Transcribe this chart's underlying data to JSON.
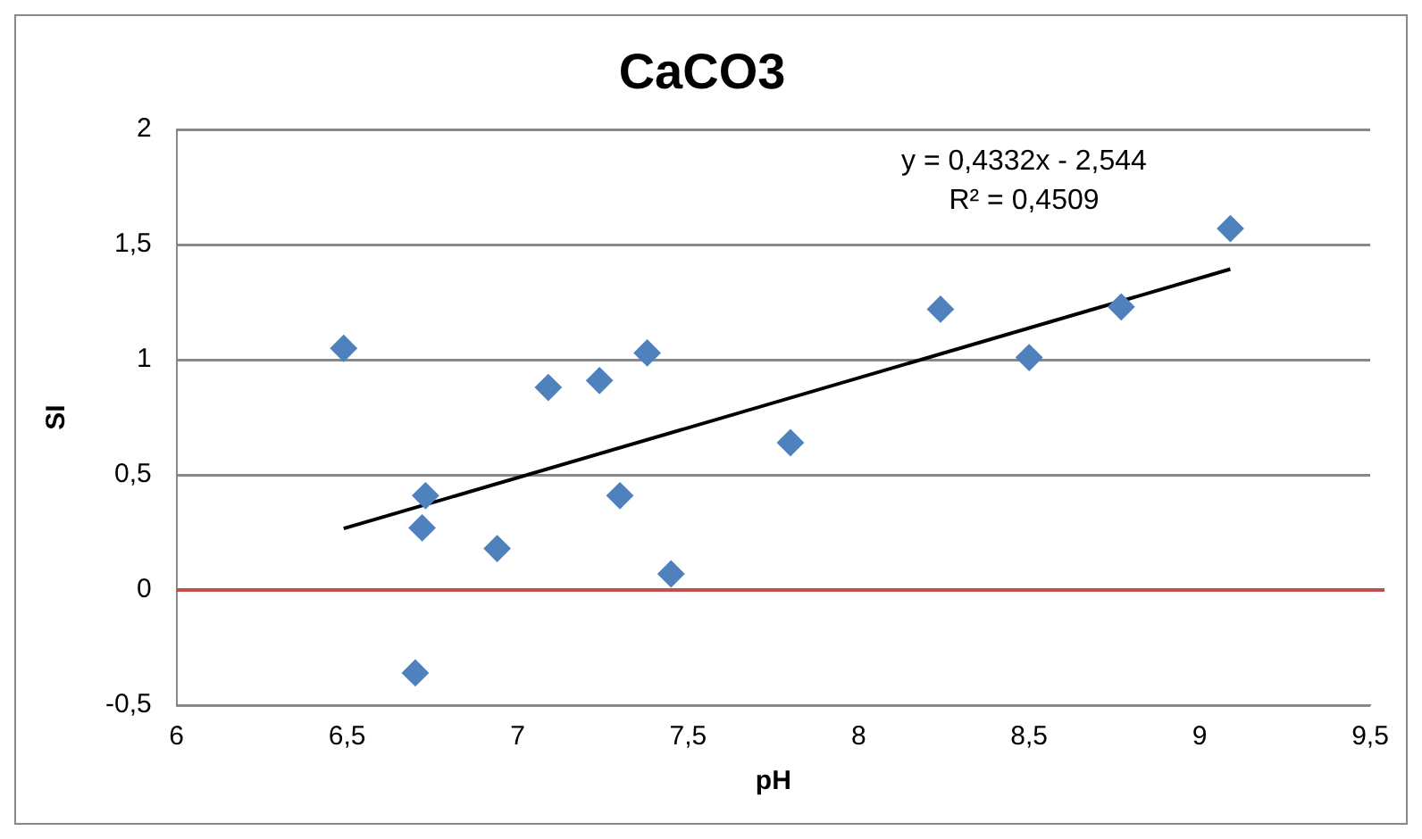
{
  "chart_data": {
    "type": "scatter",
    "title": "CaCO3",
    "xlabel": "pH",
    "ylabel": "SI",
    "annotations": [
      "y = 0,4332x - 2,544",
      "R² = 0,4509"
    ],
    "series": [
      {
        "type": "scatter",
        "color": "#4f81bd",
        "marker": "diamond",
        "x": [
          6.49,
          6.73,
          6.72,
          6.94,
          6.7,
          7.09,
          7.24,
          7.3,
          7.38,
          7.45,
          7.8,
          8.24,
          8.5,
          8.77,
          9.09
        ],
        "values": [
          1.05,
          0.41,
          0.27,
          0.18,
          -0.36,
          0.88,
          0.91,
          0.41,
          1.03,
          0.07,
          0.64,
          1.22,
          1.01,
          1.23,
          1.57
        ]
      },
      {
        "type": "line",
        "color": "#000000",
        "marker": "none",
        "x": [
          6.49,
          9.09
        ],
        "values": [
          0.267,
          1.394
        ]
      }
    ],
    "ref_lines": [
      {
        "axis": "y",
        "value": 0,
        "color": "#c0504d"
      }
    ],
    "xlim": [
      6,
      9.5
    ],
    "xticks": [
      6,
      {
        "value": 6.5,
        "label": "6,5"
      },
      7,
      {
        "value": 7.5,
        "label": "7,5"
      },
      8,
      {
        "value": 8.5,
        "label": "8,5"
      },
      9,
      {
        "value": 9.5,
        "label": "9,5"
      }
    ],
    "ylim": [
      -0.5,
      2
    ],
    "yticks": [
      {
        "value": -0.5,
        "label": "-0,5"
      },
      0,
      {
        "value": 0.5,
        "label": "0,5"
      },
      1,
      {
        "value": 1.5,
        "label": "1,5"
      },
      2
    ],
    "grid": "y",
    "legend": false
  }
}
